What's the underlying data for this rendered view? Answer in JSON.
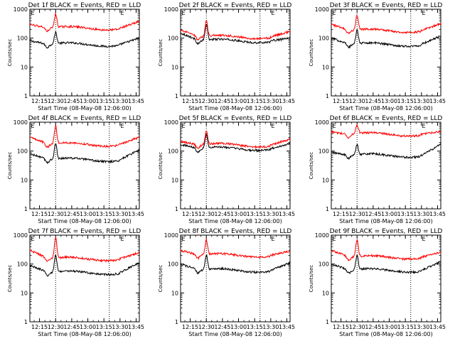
{
  "colors": {
    "events": "#000000",
    "lld": "#ff0000",
    "frame": "#000000",
    "background": "#ffffff"
  },
  "chart_data": [
    {
      "type": "line",
      "title": "Det 1f BLACK = Events, RED = LLD",
      "xlabel": "Start Time (08-May-08 12:06:00)",
      "ylabel": "Counts/sec",
      "yscale": "log",
      "ylim": [
        1,
        1000
      ],
      "x_ticks": [
        "12:15",
        "12:30",
        "12:45",
        "13:00",
        "13:15",
        "13:30",
        "13:45"
      ],
      "y_ticks": [
        "1",
        "10",
        "100",
        "1000"
      ],
      "markers": [
        "12:30",
        "13:20"
      ],
      "corner_marks": [
        "E",
        "E"
      ],
      "x_range": [
        "12:06",
        "13:48"
      ],
      "series": [
        {
          "name": "BLACK = Events",
          "color": "#000000",
          "base": 60,
          "peak": 150,
          "start": 80,
          "end": 100
        },
        {
          "name": "RED = LLD",
          "color": "#ff0000",
          "base": 220,
          "peak": 650,
          "start": 300,
          "end": 380
        }
      ]
    },
    {
      "type": "line",
      "title": "Det 2f BLACK = Events, RED = LLD",
      "xlabel": "Start Time (08-May-08 12:06:00)",
      "ylabel": "Counts/sec",
      "yscale": "log",
      "ylim": [
        1,
        1000
      ],
      "x_ticks": [
        "12:15",
        "12:30",
        "12:45",
        "13:00",
        "13:15",
        "13:30",
        "13:45"
      ],
      "y_ticks": [
        "1",
        "10",
        "100",
        "1000"
      ],
      "markers": [
        "12:30",
        "13:20"
      ],
      "corner_marks": [
        "E",
        "E"
      ],
      "x_range": [
        "12:06",
        "13:48"
      ],
      "series": [
        {
          "name": "BLACK = Events",
          "color": "#000000",
          "base": 80,
          "peak": 280,
          "start": 150,
          "end": 100
        },
        {
          "name": "RED = LLD",
          "color": "#ff0000",
          "base": 110,
          "peak": 380,
          "start": 190,
          "end": 170
        }
      ]
    },
    {
      "type": "line",
      "title": "Det 3f BLACK = Events, RED = LLD",
      "xlabel": "Start Time (08-May-08 12:06:00)",
      "ylabel": "Counts/sec",
      "yscale": "log",
      "ylim": [
        1,
        1000
      ],
      "x_ticks": [
        "12:15",
        "12:30",
        "12:45",
        "13:00",
        "13:15",
        "13:30",
        "13:45"
      ],
      "y_ticks": [
        "1",
        "10",
        "100",
        "1000"
      ],
      "markers": [
        "12:30",
        "13:20"
      ],
      "corner_marks": [
        "E",
        "E"
      ],
      "x_range": [
        "12:06",
        "13:48"
      ],
      "series": [
        {
          "name": "BLACK = Events",
          "color": "#000000",
          "base": 60,
          "peak": 180,
          "start": 100,
          "end": 120
        },
        {
          "name": "RED = LLD",
          "color": "#ff0000",
          "base": 180,
          "peak": 600,
          "start": 300,
          "end": 320
        }
      ]
    },
    {
      "type": "line",
      "title": "Det 4f BLACK = Events, RED = LLD",
      "xlabel": "Start Time (08-May-08 12:06:00)",
      "ylabel": "Counts/sec",
      "yscale": "log",
      "ylim": [
        1,
        1000
      ],
      "x_ticks": [
        "12:15",
        "12:30",
        "12:45",
        "13:00",
        "13:15",
        "13:30",
        "13:45"
      ],
      "y_ticks": [
        "1",
        "10",
        "100",
        "1000"
      ],
      "markers": [
        "12:30",
        "13:20"
      ],
      "corner_marks": [
        "E",
        "E"
      ],
      "x_range": [
        "12:06",
        "13:48"
      ],
      "series": [
        {
          "name": "BLACK = Events",
          "color": "#000000",
          "base": 50,
          "peak": 170,
          "start": 80,
          "end": 110
        },
        {
          "name": "RED = LLD",
          "color": "#ff0000",
          "base": 170,
          "peak": 700,
          "start": 300,
          "end": 300
        }
      ]
    },
    {
      "type": "line",
      "title": "Det 5f BLACK = Events, RED = LLD",
      "xlabel": "Start Time (08-May-08 12:06:00)",
      "ylabel": "Counts/sec",
      "yscale": "log",
      "ylim": [
        1,
        1000
      ],
      "x_ticks": [
        "12:15",
        "12:30",
        "12:45",
        "13:00",
        "13:15",
        "13:30",
        "13:45"
      ],
      "y_ticks": [
        "1",
        "10",
        "100",
        "1000"
      ],
      "markers": [
        "12:30",
        "13:20"
      ],
      "corner_marks": [
        "E",
        "E"
      ],
      "x_range": [
        "12:06",
        "13:48"
      ],
      "series": [
        {
          "name": "BLACK = Events",
          "color": "#000000",
          "base": 120,
          "peak": 350,
          "start": 170,
          "end": 180
        },
        {
          "name": "RED = LLD",
          "color": "#ff0000",
          "base": 160,
          "peak": 480,
          "start": 220,
          "end": 260
        }
      ]
    },
    {
      "type": "line",
      "title": "Det 6f BLACK = Events, RED = LLD",
      "xlabel": "Start Time (08-May-08 12:06:00)",
      "ylabel": "Counts/sec",
      "yscale": "log",
      "ylim": [
        1,
        1000
      ],
      "x_ticks": [
        "12:15",
        "12:30",
        "12:45",
        "13:00",
        "13:15",
        "13:30",
        "13:45"
      ],
      "y_ticks": [
        "1",
        "10",
        "100",
        "1000"
      ],
      "markers": [
        "12:30",
        "13:20"
      ],
      "corner_marks": [
        "E",
        "E"
      ],
      "x_range": [
        "12:06",
        "13:48"
      ],
      "series": [
        {
          "name": "BLACK = Events",
          "color": "#000000",
          "base": 70,
          "peak": 160,
          "start": 90,
          "end": 170
        },
        {
          "name": "RED = LLD",
          "color": "#ff0000",
          "base": 380,
          "peak": 750,
          "start": 450,
          "end": 480
        }
      ]
    },
    {
      "type": "line",
      "title": "Det 7f BLACK = Events, RED = LLD",
      "xlabel": "Start Time (08-May-08 12:06:00)",
      "ylabel": "Counts/sec",
      "yscale": "log",
      "ylim": [
        1,
        1000
      ],
      "x_ticks": [
        "12:15",
        "12:30",
        "12:45",
        "13:00",
        "13:15",
        "13:30",
        "13:45"
      ],
      "y_ticks": [
        "1",
        "10",
        "100",
        "1000"
      ],
      "markers": [
        "12:30",
        "13:20"
      ],
      "corner_marks": [
        "E",
        "E"
      ],
      "x_range": [
        "12:06",
        "13:48"
      ],
      "series": [
        {
          "name": "BLACK = Events",
          "color": "#000000",
          "base": 50,
          "peak": 190,
          "start": 90,
          "end": 110
        },
        {
          "name": "RED = LLD",
          "color": "#ff0000",
          "base": 150,
          "peak": 800,
          "start": 300,
          "end": 250
        }
      ]
    },
    {
      "type": "line",
      "title": "Det 8f BLACK = Events, RED = LLD",
      "xlabel": "Start Time (08-May-08 12:06:00)",
      "ylabel": "Counts/sec",
      "yscale": "log",
      "ylim": [
        1,
        1000
      ],
      "x_ticks": [
        "12:15",
        "12:30",
        "12:45",
        "13:00",
        "13:15",
        "13:30",
        "13:45"
      ],
      "y_ticks": [
        "1",
        "10",
        "100",
        "1000"
      ],
      "markers": [
        "12:30",
        "13:20"
      ],
      "corner_marks": [
        "E",
        "E"
      ],
      "x_range": [
        "12:06",
        "13:48"
      ],
      "series": [
        {
          "name": "BLACK = Events",
          "color": "#000000",
          "base": 60,
          "peak": 200,
          "start": 100,
          "end": 110
        },
        {
          "name": "RED = LLD",
          "color": "#ff0000",
          "base": 200,
          "peak": 650,
          "start": 300,
          "end": 280
        }
      ]
    },
    {
      "type": "line",
      "title": "Det 9f BLACK = Events, RED = LLD",
      "xlabel": "Start Time (08-May-08 12:06:00)",
      "ylabel": "Counts/sec",
      "yscale": "log",
      "ylim": [
        1,
        1000
      ],
      "x_ticks": [
        "12:15",
        "12:30",
        "12:45",
        "13:00",
        "13:15",
        "13:30",
        "13:45"
      ],
      "y_ticks": [
        "1",
        "10",
        "100",
        "1000"
      ],
      "markers": [
        "12:30",
        "13:20"
      ],
      "corner_marks": [
        "E",
        "E"
      ],
      "x_range": [
        "12:06",
        "13:48"
      ],
      "series": [
        {
          "name": "BLACK = Events",
          "color": "#000000",
          "base": 60,
          "peak": 190,
          "start": 100,
          "end": 120
        },
        {
          "name": "RED = LLD",
          "color": "#ff0000",
          "base": 170,
          "peak": 650,
          "start": 300,
          "end": 260
        }
      ]
    }
  ]
}
